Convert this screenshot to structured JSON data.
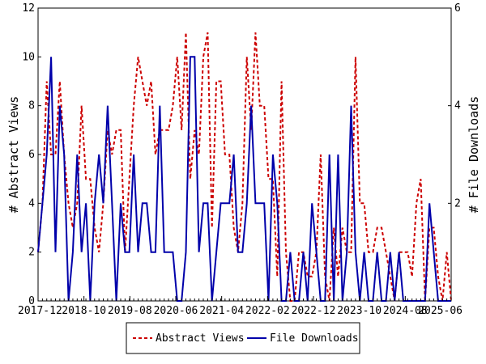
{
  "chart_data": {
    "type": "line",
    "y_left_label": "# Abstract Views",
    "y_right_label": "# File Downloads",
    "y_left_range": [
      0,
      12
    ],
    "y_right_range": [
      0,
      6
    ],
    "y_left_ticks": [
      "0",
      "2",
      "4",
      "6",
      "8",
      "10",
      "12"
    ],
    "y_right_ticks": [
      "2",
      "4",
      "6"
    ],
    "x_range": [
      "2017-12",
      "2025-06"
    ],
    "x_tick_labels": [
      "2017-12",
      "2018-10",
      "2019-08",
      "2020-06",
      "2021-04",
      "2022-02",
      "2022-12",
      "2023-10",
      "2024-08",
      "2025-06"
    ],
    "grid": false,
    "legend_position": "bottom",
    "colors": {
      "abstract_views": "#cc0000",
      "file_downloads": "#0000aa"
    },
    "series": [
      {
        "name": "Abstract Views",
        "axis": "left",
        "style": "dashed",
        "values": [
          2,
          4,
          9,
          6,
          6,
          9,
          6,
          4,
          3,
          4,
          8,
          5,
          5,
          3,
          2,
          4,
          7,
          6,
          7,
          7,
          2,
          5,
          8,
          10,
          9,
          8,
          9,
          6,
          7,
          7,
          7,
          8,
          10,
          7,
          11,
          5,
          7,
          6,
          10,
          11,
          3,
          9,
          9,
          6,
          6,
          3,
          2,
          4,
          10,
          7,
          11,
          8,
          8,
          5,
          5,
          1,
          9,
          2,
          0,
          0,
          2,
          2,
          1,
          1,
          2,
          6,
          1,
          0,
          3,
          1,
          3,
          2,
          2,
          10,
          4,
          4,
          2,
          2,
          3,
          3,
          2,
          1,
          0,
          2,
          2,
          2,
          1,
          4,
          5,
          0,
          3,
          3,
          1,
          0,
          2,
          0
        ]
      },
      {
        "name": "File Downloads",
        "axis": "right",
        "style": "solid",
        "values": [
          1,
          2,
          3,
          5,
          1,
          4,
          3,
          0,
          1,
          3,
          1,
          2,
          0,
          2,
          3,
          2,
          4,
          2,
          0,
          2,
          1,
          1,
          3,
          1,
          2,
          2,
          1,
          1,
          4,
          1,
          1,
          1,
          0,
          0,
          1,
          5,
          5,
          1,
          2,
          2,
          0,
          1,
          2,
          2,
          2,
          3,
          1,
          1,
          2,
          4,
          2,
          2,
          2,
          0,
          3,
          2,
          0,
          0,
          1,
          0,
          0,
          1,
          0,
          2,
          1,
          0,
          0,
          3,
          0,
          3,
          0,
          1,
          4,
          1,
          0,
          1,
          0,
          0,
          1,
          0,
          0,
          1,
          0,
          1,
          0,
          0,
          0,
          0,
          0,
          0,
          2,
          1,
          0,
          0,
          0,
          0
        ]
      }
    ]
  }
}
